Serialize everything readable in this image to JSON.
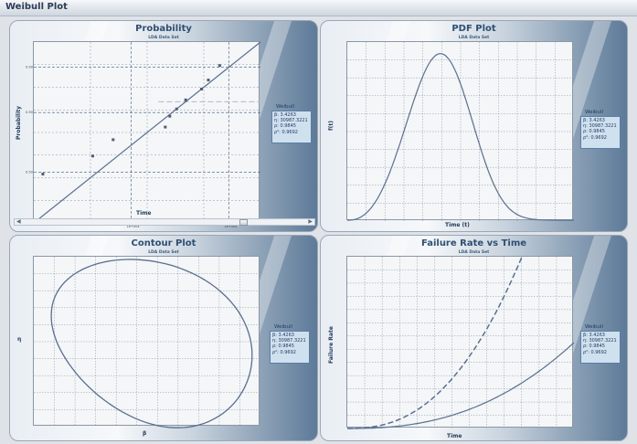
{
  "window_title": "Weibull Plot",
  "legend_template": {
    "title": "Weibull",
    "lines": [
      "β: 3.4263",
      "η: 30987.3221",
      "ρ: 0.9845",
      "ρ²: 0.9692"
    ]
  },
  "colors": {
    "curve": "#5a6f8f",
    "grid": "#8a96a6",
    "point": "#4e5d73"
  },
  "chart_data": [
    {
      "type": "scatter",
      "title": "Probability",
      "subtitle": "LDA Data Set",
      "xlabel": "Time",
      "ylabel": "Probability",
      "x_ticks": [
        "1e+004",
        "1e+005"
      ],
      "y_ticks": [
        "0.99",
        "0.90",
        "0.50"
      ],
      "points_norm_frac": [
        [
          0.04,
          0.27
        ],
        [
          0.26,
          0.37
        ],
        [
          0.35,
          0.46
        ],
        [
          0.58,
          0.53
        ],
        [
          0.6,
          0.59
        ],
        [
          0.63,
          0.63
        ],
        [
          0.67,
          0.68
        ],
        [
          0.74,
          0.74
        ],
        [
          0.77,
          0.79
        ],
        [
          0.82,
          0.87
        ]
      ],
      "fit_line_norm_frac": [
        [
          0,
          0
        ],
        [
          1,
          1
        ]
      ],
      "legend": {
        "title": "Weibull",
        "lines": [
          "β: 3.4263",
          "η: 30987.3221",
          "ρ: 0.9845",
          "ρ²: 0.9692"
        ]
      }
    },
    {
      "type": "line",
      "title": "PDF Plot",
      "subtitle": "LDA Data Set",
      "xlabel": "Time (t)",
      "ylabel": "f(t)",
      "legend": {
        "title": "Weibull",
        "lines": [
          "β: 3.4263",
          "η: 30987.3221",
          "ρ: 0.9845",
          "ρ²: 0.9692"
        ]
      }
    },
    {
      "type": "line",
      "title": "Contour Plot",
      "subtitle": "LDA Data Set",
      "xlabel": "β",
      "ylabel": "η",
      "legend": {
        "title": "Weibull",
        "lines": [
          "β: 3.4263",
          "η: 30987.3221",
          "ρ: 0.9845",
          "ρ²: 0.9692"
        ]
      }
    },
    {
      "type": "line",
      "title": "Failure Rate vs Time",
      "subtitle": "LDA Data Set",
      "xlabel": "Time",
      "ylabel": "Failure Rate",
      "legend": {
        "title": "Weibull",
        "lines": [
          "β: 3.4263",
          "η: 30987.3221",
          "ρ: 0.9845",
          "ρ²: 0.9692"
        ]
      }
    }
  ]
}
